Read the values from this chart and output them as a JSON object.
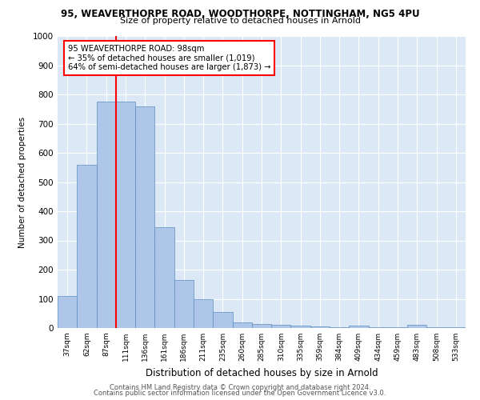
{
  "title_line1": "95, WEAVERTHORPE ROAD, WOODTHORPE, NOTTINGHAM, NG5 4PU",
  "title_line2": "Size of property relative to detached houses in Arnold",
  "xlabel": "Distribution of detached houses by size in Arnold",
  "ylabel": "Number of detached properties",
  "categories": [
    "37sqm",
    "62sqm",
    "87sqm",
    "111sqm",
    "136sqm",
    "161sqm",
    "186sqm",
    "211sqm",
    "235sqm",
    "260sqm",
    "285sqm",
    "310sqm",
    "335sqm",
    "359sqm",
    "384sqm",
    "409sqm",
    "434sqm",
    "459sqm",
    "483sqm",
    "508sqm",
    "533sqm"
  ],
  "values": [
    110,
    560,
    775,
    775,
    760,
    345,
    165,
    100,
    55,
    20,
    13,
    10,
    8,
    5,
    2,
    8,
    2,
    2,
    10,
    2,
    2
  ],
  "bar_color": "#aec6e8",
  "bar_edge_color": "#5a8fc0",
  "background_color": "#dce8f5",
  "red_line_x": 2.5,
  "annotation_text": "95 WEAVERTHORPE ROAD: 98sqm\n← 35% of detached houses are smaller (1,019)\n64% of semi-detached houses are larger (1,873) →",
  "footer_line1": "Contains HM Land Registry data © Crown copyright and database right 2024.",
  "footer_line2": "Contains public sector information licensed under the Open Government Licence v3.0.",
  "ylim": [
    0,
    1000
  ],
  "yticks": [
    0,
    100,
    200,
    300,
    400,
    500,
    600,
    700,
    800,
    900,
    1000
  ]
}
